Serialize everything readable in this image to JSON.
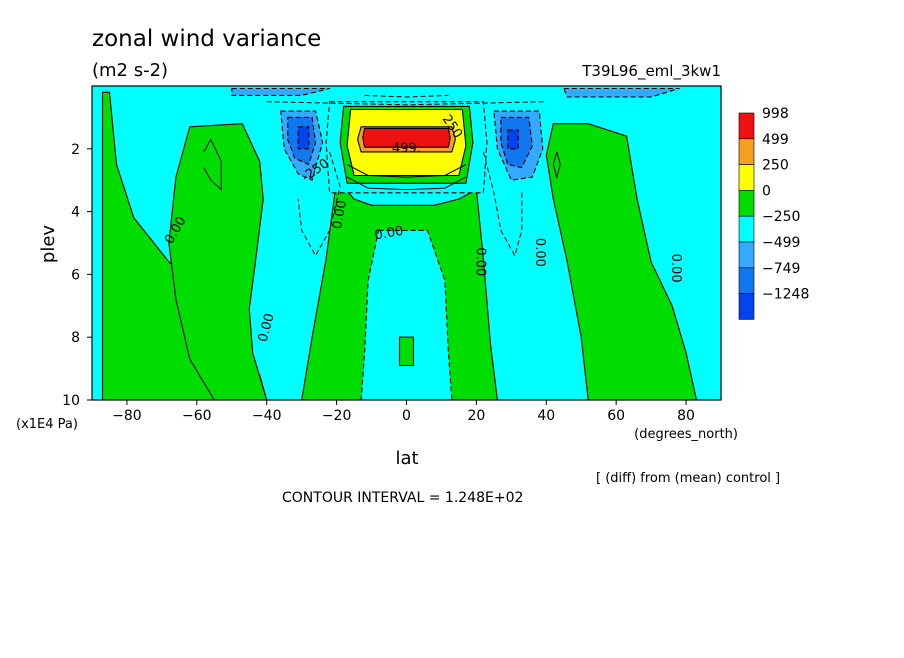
{
  "chart_data": {
    "type": "heatmap",
    "title": "zonal wind variance",
    "subtitle": "(m2 s-2)",
    "experiment": "T39L96_eml_3kw1",
    "xlabel": "lat",
    "x_units": "(degrees_north)",
    "ylabel": "plev",
    "y_units": "(x1E4 Pa)",
    "xlim": [
      -90,
      90
    ],
    "ylim": [
      0,
      10
    ],
    "y_inverted": true,
    "x_ticks": [
      -80,
      -60,
      -40,
      -20,
      0,
      20,
      40,
      60,
      80
    ],
    "y_ticks": [
      2,
      4,
      6,
      8,
      10
    ],
    "legend_position": "right",
    "colorbar": {
      "levels": [
        "998",
        "499",
        "250",
        "0",
        "-250",
        "-499",
        "-749",
        "-1248"
      ],
      "colors": [
        "#ee1111",
        "#f4a020",
        "#ffff00",
        "#00dd00",
        "#00ffff",
        "#33aaff",
        "#1177ee",
        "#0044ee"
      ]
    },
    "contour_labels": [
      {
        "text": "0.00",
        "lat": -66,
        "plev": 4.6,
        "angle": -60
      },
      {
        "text": "0.00",
        "lat": -40,
        "plev": 7.7,
        "angle": -75
      },
      {
        "text": "0.00",
        "lat": -19,
        "plev": 4.1,
        "angle": -80
      },
      {
        "text": "0.00",
        "lat": -5,
        "plev": 4.7,
        "angle": -10
      },
      {
        "text": "0.00",
        "lat": 21,
        "plev": 5.6,
        "angle": 90
      },
      {
        "text": "0.00",
        "lat": 38,
        "plev": 5.3,
        "angle": 90
      },
      {
        "text": "0.00",
        "lat": 77,
        "plev": 5.8,
        "angle": 90
      },
      {
        "text": "-250",
        "lat": -26,
        "plev": 2.7,
        "angle": -35
      },
      {
        "text": "250",
        "lat": 13,
        "plev": 1.3,
        "angle": 55
      },
      {
        "text": "499.",
        "lat": 0,
        "plev": 2.0,
        "angle": 0
      }
    ],
    "regions": [
      {
        "value": "0",
        "points": [
          [
            -87,
            0.2
          ],
          [
            -85,
            0.2
          ],
          [
            -83,
            2.5
          ],
          [
            -78,
            4.2
          ],
          [
            -68,
            5.6
          ],
          [
            -58,
            6.8
          ],
          [
            -48,
            8.2
          ],
          [
            -42,
            9.2
          ],
          [
            -40,
            10
          ],
          [
            -87,
            10
          ]
        ]
      },
      {
        "value": "0",
        "points": [
          [
            -62,
            1.3
          ],
          [
            -47,
            1.2
          ],
          [
            -42,
            2.4
          ],
          [
            -41,
            3.6
          ],
          [
            -43,
            5.4
          ],
          [
            -45,
            7.1
          ],
          [
            -44,
            8.5
          ],
          [
            -40,
            10
          ],
          [
            -55,
            10
          ],
          [
            -62,
            8.7
          ],
          [
            -66,
            6.8
          ],
          [
            -68,
            5.0
          ],
          [
            -66,
            2.9
          ]
        ]
      },
      {
        "value": "0",
        "points": [
          [
            -20,
            3.0
          ],
          [
            -15,
            3.6
          ],
          [
            -10,
            3.8
          ],
          [
            -2,
            3.8
          ],
          [
            8,
            3.8
          ],
          [
            15,
            3.6
          ],
          [
            20,
            3.3
          ],
          [
            22,
            5.5
          ],
          [
            24,
            8.2
          ],
          [
            26,
            10
          ],
          [
            -30,
            10
          ],
          [
            -27,
            8.0
          ],
          [
            -23,
            5.5
          ]
        ]
      },
      {
        "value": "0",
        "points": [
          [
            42,
            1.2
          ],
          [
            52,
            1.2
          ],
          [
            63,
            1.6
          ],
          [
            66,
            3.6
          ],
          [
            70,
            5.6
          ],
          [
            76,
            7.0
          ],
          [
            80,
            8.5
          ],
          [
            83,
            10
          ],
          [
            52,
            10
          ],
          [
            50,
            8.0
          ],
          [
            46,
            5.6
          ],
          [
            42,
            3.6
          ],
          [
            40,
            2.2
          ]
        ]
      },
      {
        "value": "-250",
        "points": [
          [
            -22,
            0.5
          ],
          [
            22,
            0.5
          ],
          [
            23,
            1.8
          ],
          [
            22,
            3.4
          ],
          [
            -22,
            3.4
          ],
          [
            -23,
            1.8
          ]
        ]
      },
      {
        "value": "0",
        "points": [
          [
            -18,
            0.65
          ],
          [
            18,
            0.65
          ],
          [
            19,
            1.8
          ],
          [
            17,
            3.1
          ],
          [
            -17,
            3.1
          ],
          [
            -19,
            1.8
          ]
        ]
      },
      {
        "value": "-250",
        "points": [
          [
            -8,
            4.6
          ],
          [
            6,
            4.6
          ],
          [
            11,
            6.2
          ],
          [
            12,
            8.5
          ],
          [
            13,
            10
          ],
          [
            -13,
            10
          ],
          [
            -12,
            8.5
          ],
          [
            -11,
            6.2
          ]
        ]
      },
      {
        "value": "0",
        "points": [
          [
            -2,
            8.0
          ],
          [
            2,
            8.0
          ],
          [
            2,
            8.9
          ],
          [
            -2,
            8.9
          ]
        ]
      },
      {
        "value": "250",
        "points": [
          [
            -16,
            0.75
          ],
          [
            16,
            0.75
          ],
          [
            17,
            1.9
          ],
          [
            15,
            2.85
          ],
          [
            -15,
            2.85
          ],
          [
            -17,
            1.9
          ]
        ]
      },
      {
        "value": "499",
        "points": [
          [
            -13,
            1.3
          ],
          [
            13,
            1.3
          ],
          [
            14,
            1.7
          ],
          [
            13,
            2.1
          ],
          [
            -13,
            2.1
          ],
          [
            -14,
            1.7
          ]
        ]
      },
      {
        "value": "998",
        "points": [
          [
            -12,
            1.35
          ],
          [
            12,
            1.35
          ],
          [
            12.5,
            1.65
          ],
          [
            12,
            1.95
          ],
          [
            -12,
            1.95
          ],
          [
            -12.5,
            1.65
          ]
        ]
      },
      {
        "value": "-499",
        "points": [
          [
            -36,
            0.8
          ],
          [
            -26,
            0.8
          ],
          [
            -24,
            1.8
          ],
          [
            -27,
            3.0
          ],
          [
            -31,
            2.8
          ],
          [
            -35,
            2.0
          ]
        ]
      },
      {
        "value": "-749",
        "points": [
          [
            -34,
            1.0
          ],
          [
            -27,
            1.0
          ],
          [
            -26,
            1.8
          ],
          [
            -28,
            2.5
          ],
          [
            -32,
            2.3
          ],
          [
            -34,
            1.7
          ]
        ]
      },
      {
        "value": "-1248",
        "points": [
          [
            -31,
            1.3
          ],
          [
            -28,
            1.3
          ],
          [
            -28,
            2.0
          ],
          [
            -31,
            2.0
          ]
        ]
      },
      {
        "value": "-499",
        "points": [
          [
            25,
            0.8
          ],
          [
            38,
            0.8
          ],
          [
            39,
            2.0
          ],
          [
            36,
            2.9
          ],
          [
            30,
            3.0
          ],
          [
            26,
            2.0
          ]
        ]
      },
      {
        "value": "-749",
        "points": [
          [
            27,
            1.0
          ],
          [
            35,
            1.0
          ],
          [
            36,
            1.9
          ],
          [
            33,
            2.6
          ],
          [
            29,
            2.5
          ],
          [
            27,
            1.8
          ]
        ]
      },
      {
        "value": "-1248",
        "points": [
          [
            29,
            1.4
          ],
          [
            32,
            1.4
          ],
          [
            32,
            2.0
          ],
          [
            29,
            2.0
          ]
        ]
      },
      {
        "value": "-499",
        "points": [
          [
            -50,
            0.08
          ],
          [
            -22,
            0.08
          ],
          [
            -30,
            0.3
          ],
          [
            -50,
            0.3
          ]
        ]
      },
      {
        "value": "-499",
        "points": [
          [
            45,
            0.08
          ],
          [
            78,
            0.08
          ],
          [
            70,
            0.35
          ],
          [
            46,
            0.35
          ]
        ]
      }
    ],
    "contour_lines": [
      {
        "style": "solid",
        "points": [
          [
            -58,
            2.1
          ],
          [
            -56,
            1.7
          ],
          [
            -53,
            2.4
          ],
          [
            -53,
            3.3
          ],
          [
            -56,
            3.0
          ],
          [
            -58,
            2.6
          ]
        ]
      },
      {
        "style": "solid",
        "points": [
          [
            43,
            2.1
          ],
          [
            44,
            2.5
          ],
          [
            43,
            2.9
          ],
          [
            42,
            2.5
          ],
          [
            43,
            2.1
          ]
        ]
      },
      {
        "style": "solid",
        "points": [
          [
            -17,
            2.9
          ],
          [
            -11,
            3.25
          ],
          [
            0,
            3.3
          ],
          [
            11,
            3.25
          ],
          [
            17,
            2.9
          ]
        ]
      },
      {
        "style": "solid",
        "points": [
          [
            -17,
            2.5
          ],
          [
            -11,
            2.85
          ],
          [
            0,
            2.9
          ],
          [
            11,
            2.85
          ],
          [
            17,
            2.5
          ]
        ]
      },
      {
        "style": "dashed",
        "points": [
          [
            -22,
            2.1
          ],
          [
            -19,
            3.2
          ],
          [
            -22,
            4.6
          ],
          [
            -26,
            5.4
          ],
          [
            -30,
            4.6
          ],
          [
            -31,
            3.6
          ]
        ]
      },
      {
        "style": "dashed",
        "points": [
          [
            22,
            2.1
          ],
          [
            25,
            3.4
          ],
          [
            27,
            4.6
          ],
          [
            31,
            5.4
          ],
          [
            33,
            4.6
          ],
          [
            33,
            3.4
          ]
        ]
      },
      {
        "style": "dashed",
        "points": [
          [
            -40,
            0.5
          ],
          [
            -20,
            0.55
          ],
          [
            0,
            0.6
          ],
          [
            20,
            0.55
          ],
          [
            40,
            0.5
          ]
        ]
      },
      {
        "style": "dashed",
        "points": [
          [
            -12,
            0.3
          ],
          [
            0,
            0.35
          ],
          [
            12,
            0.3
          ]
        ]
      }
    ]
  }
}
